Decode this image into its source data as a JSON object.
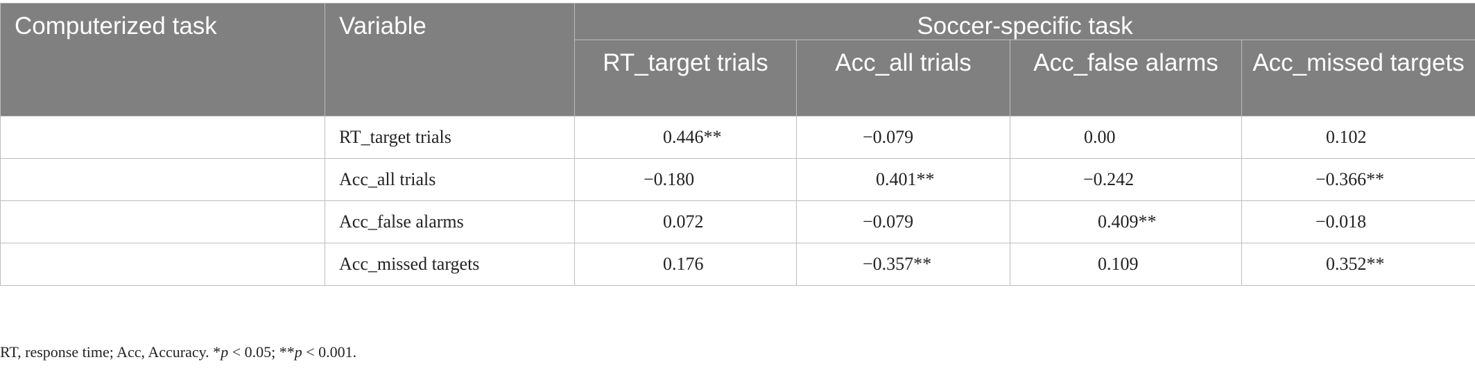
{
  "table": {
    "header": {
      "computerized_task": "Computerized task",
      "variable": "Variable",
      "group": "Soccer-specific task",
      "columns": [
        "RT_target trials",
        "Acc_all trials",
        "Acc_false alarms",
        "Acc_missed targets"
      ]
    },
    "rows": [
      {
        "task": "",
        "variable": "RT_target trials",
        "values": [
          "0.446**",
          "−0.079",
          "0.00",
          "0.102"
        ]
      },
      {
        "task": "",
        "variable": "Acc_all trials",
        "values": [
          "−0.180",
          "0.401**",
          "−0.242",
          "−0.366**"
        ]
      },
      {
        "task": "",
        "variable": "Acc_false alarms",
        "values": [
          "0.072",
          "−0.079",
          "0.409**",
          "−0.018"
        ]
      },
      {
        "task": "",
        "variable": "Acc_missed targets",
        "values": [
          "0.176",
          "−0.357**",
          "0.109",
          "0.352**"
        ]
      }
    ]
  },
  "footnote": {
    "abbrev": "RT, response time; Acc, Accuracy. *",
    "p1": "p",
    "t1": " < 0.05; **",
    "p2": "p",
    "t2": " < 0.001."
  }
}
